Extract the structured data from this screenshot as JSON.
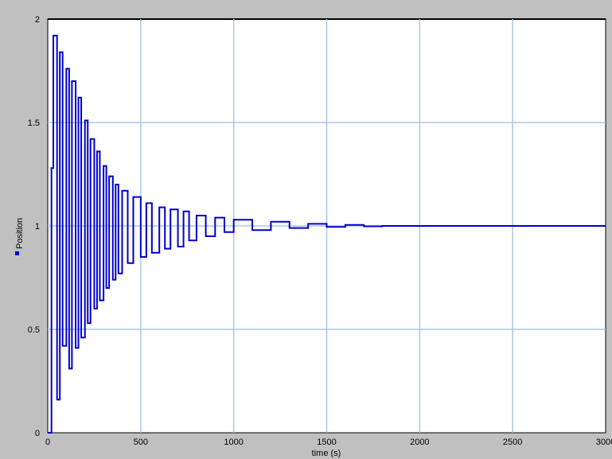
{
  "chart_data": {
    "type": "line",
    "title": "",
    "xlabel": "time (s)",
    "ylabel": "Position",
    "xlim": [
      0,
      3000
    ],
    "ylim": [
      0,
      2
    ],
    "xticks": [
      "0",
      "500",
      "1000",
      "1500",
      "2000",
      "2500",
      "3000"
    ],
    "yticks": [
      "0",
      "0.5",
      "1",
      "1.5",
      "2"
    ],
    "grid": true,
    "legend_position": "left",
    "series": [
      {
        "name": "Position",
        "color": "#0000cc",
        "style": "step",
        "description_of_shape": "damped oscillation around 1, stepwise sampled, decaying to steady state by ~1900 s",
        "x": [
          0,
          20,
          30,
          50,
          65,
          80,
          100,
          115,
          130,
          150,
          165,
          180,
          200,
          215,
          230,
          250,
          265,
          280,
          300,
          315,
          330,
          350,
          365,
          380,
          400,
          430,
          460,
          500,
          530,
          560,
          600,
          630,
          660,
          700,
          730,
          760,
          800,
          850,
          900,
          950,
          1000,
          1100,
          1200,
          1300,
          1400,
          1500,
          1600,
          1700,
          1800,
          1900,
          3000
        ],
        "y": [
          0.0,
          1.28,
          1.92,
          0.16,
          1.84,
          0.42,
          1.76,
          0.31,
          1.7,
          0.41,
          1.62,
          0.46,
          1.51,
          0.53,
          1.42,
          0.6,
          1.36,
          0.64,
          1.29,
          0.7,
          1.24,
          0.74,
          1.2,
          0.77,
          1.17,
          0.82,
          1.14,
          0.85,
          1.11,
          0.87,
          1.09,
          0.89,
          1.08,
          0.9,
          1.07,
          0.93,
          1.05,
          0.95,
          1.04,
          0.97,
          1.03,
          0.98,
          1.02,
          0.99,
          1.01,
          0.995,
          1.005,
          0.998,
          1.0,
          1.0,
          1.0
        ]
      }
    ]
  }
}
